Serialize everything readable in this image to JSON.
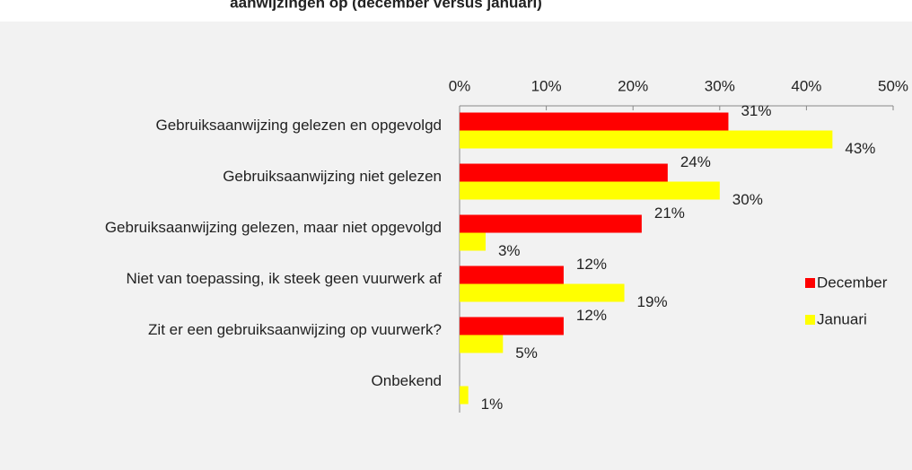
{
  "chart_data": {
    "type": "bar",
    "orientation": "horizontal",
    "title": "aanwijzingen op (december versus januari)",
    "categories": [
      "Gebruiksaanwijzing gelezen en opgevolgd",
      "Gebruiksaanwijzing niet gelezen",
      "Gebruiksaanwijzing gelezen, maar niet opgevolgd",
      "Niet van toepassing, ik steek geen vuurwerk af",
      "Zit er een gebruiksaanwijzing op vuurwerk?",
      "Onbekend"
    ],
    "series": [
      {
        "name": "December",
        "color": "#ff0000",
        "values": [
          31,
          24,
          21,
          12,
          12,
          null
        ],
        "value_labels": [
          "31%",
          "24%",
          "21%",
          "12%",
          "12%",
          null
        ]
      },
      {
        "name": "Januari",
        "color": "#ffff00",
        "values": [
          43,
          30,
          3,
          19,
          5,
          1
        ],
        "value_labels": [
          "43%",
          "30%",
          "3%",
          "19%",
          "5%",
          "1%"
        ]
      }
    ],
    "xlim": [
      0,
      50
    ],
    "xticks": [
      {
        "value": 0,
        "label": "0%"
      },
      {
        "value": 10,
        "label": "10%"
      },
      {
        "value": 20,
        "label": "20%"
      },
      {
        "value": 30,
        "label": "30%"
      },
      {
        "value": 40,
        "label": "40%"
      },
      {
        "value": 50,
        "label": "50%"
      }
    ],
    "legend": "right"
  }
}
